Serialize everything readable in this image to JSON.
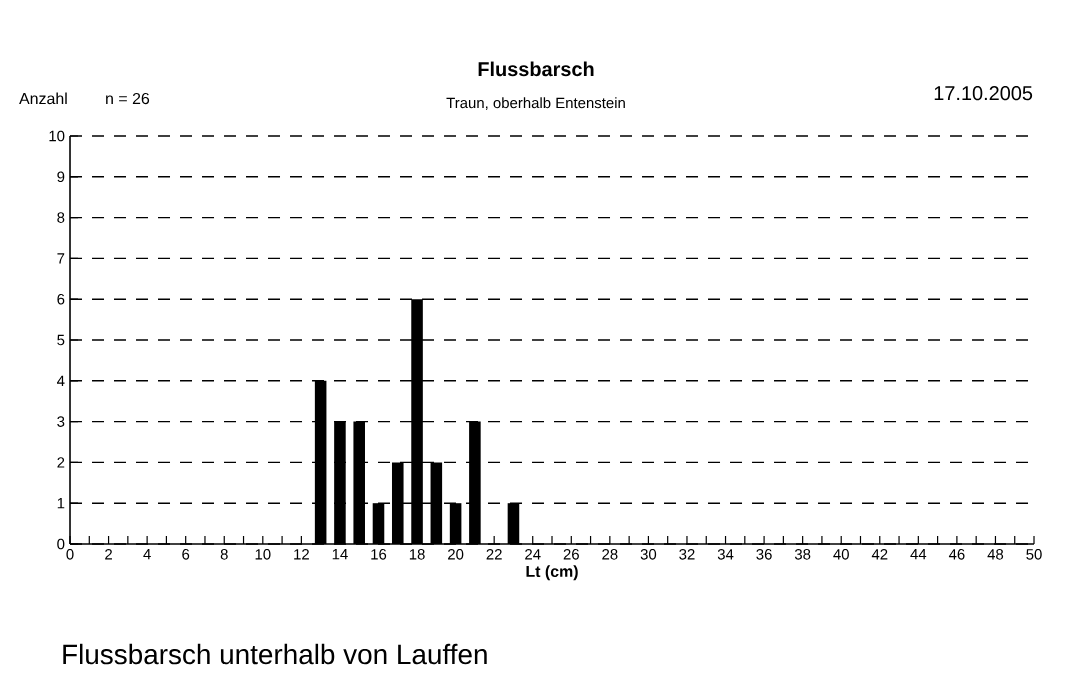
{
  "chart_data": {
    "type": "bar",
    "title": "Flussbarsch",
    "subtitle": "Traun, oberhalb Entenstein",
    "xlabel": "Lt (cm)",
    "ylabel": "Anzahl",
    "annotations": [
      "n = 26",
      "17.10.2005",
      "Flussbarsch unterhalb von Lauffen"
    ],
    "x": [
      13,
      14,
      15,
      16,
      17,
      18,
      19,
      20,
      21,
      23
    ],
    "values": [
      4,
      3,
      3,
      1,
      2,
      6,
      2,
      1,
      3,
      1
    ],
    "color": "#000000",
    "xlim": [
      0,
      50
    ],
    "ylim": [
      0,
      10
    ],
    "xticks": [
      0,
      {
        "value": 1,
        "label": null
      },
      2,
      {
        "value": 3,
        "label": null
      },
      4,
      {
        "value": 5,
        "label": null
      },
      6,
      {
        "value": 7,
        "label": null
      },
      8,
      {
        "value": 9,
        "label": null
      },
      10,
      {
        "value": 11,
        "label": null
      },
      12,
      {
        "value": 13,
        "label": null
      },
      14,
      {
        "value": 15,
        "label": null
      },
      16,
      {
        "value": 17,
        "label": null
      },
      18,
      {
        "value": 19,
        "label": null
      },
      20,
      {
        "value": 21,
        "label": null
      },
      22,
      {
        "value": 23,
        "label": null
      },
      24,
      {
        "value": 25,
        "label": null
      },
      26,
      {
        "value": 27,
        "label": null
      },
      28,
      {
        "value": 29,
        "label": null
      },
      30,
      {
        "value": 31,
        "label": null
      },
      32,
      {
        "value": 33,
        "label": null
      },
      34,
      {
        "value": 35,
        "label": null
      },
      36,
      {
        "value": 37,
        "label": null
      },
      38,
      {
        "value": 39,
        "label": null
      },
      40,
      {
        "value": 41,
        "label": null
      },
      42,
      {
        "value": 43,
        "label": null
      },
      44,
      {
        "value": 45,
        "label": null
      },
      46,
      {
        "value": 47,
        "label": null
      },
      48,
      {
        "value": 49,
        "label": null
      },
      50
    ],
    "yticks": [
      0,
      1,
      2,
      3,
      4,
      5,
      6,
      7,
      8,
      9,
      10
    ],
    "grid": "y"
  }
}
